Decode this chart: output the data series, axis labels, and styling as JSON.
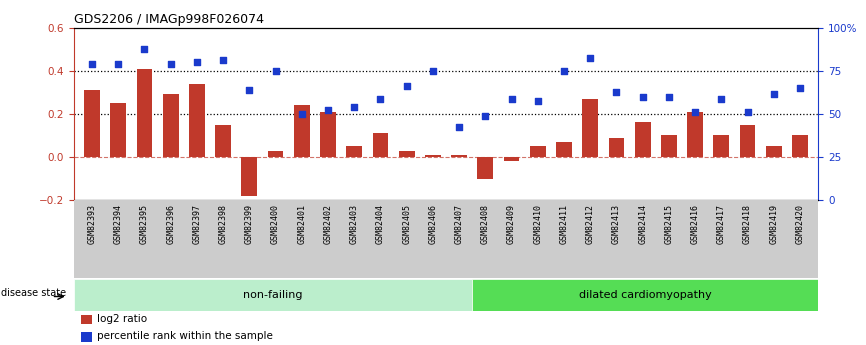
{
  "title": "GDS2206 / IMAGp998F026074",
  "samples": [
    "GSM82393",
    "GSM82394",
    "GSM82395",
    "GSM82396",
    "GSM82397",
    "GSM82398",
    "GSM82399",
    "GSM82400",
    "GSM82401",
    "GSM82402",
    "GSM82403",
    "GSM82404",
    "GSM82405",
    "GSM82406",
    "GSM82407",
    "GSM82408",
    "GSM82409",
    "GSM82410",
    "GSM82411",
    "GSM82412",
    "GSM82413",
    "GSM82414",
    "GSM82415",
    "GSM82416",
    "GSM82417",
    "GSM82418",
    "GSM82419",
    "GSM82420"
  ],
  "log2_ratio": [
    0.31,
    0.25,
    0.41,
    0.29,
    0.34,
    0.15,
    -0.18,
    0.03,
    0.24,
    0.21,
    0.05,
    0.11,
    0.03,
    0.01,
    0.01,
    -0.1,
    -0.02,
    0.05,
    0.07,
    0.27,
    0.09,
    0.16,
    0.1,
    0.21,
    0.1,
    0.15,
    0.05,
    0.1
  ],
  "percentile": [
    0.43,
    0.43,
    0.5,
    0.43,
    0.44,
    0.45,
    0.31,
    0.4,
    0.2,
    0.22,
    0.23,
    0.27,
    0.33,
    0.4,
    0.14,
    0.19,
    0.27,
    0.26,
    0.4,
    0.46,
    0.3,
    0.28,
    0.28,
    0.21,
    0.27,
    0.21,
    0.29,
    0.32
  ],
  "non_failing_count": 15,
  "ylim_left": [
    -0.2,
    0.6
  ],
  "bar_color": "#C0392B",
  "dot_color": "#1A3ACC",
  "background_color": "#FFFFFF",
  "nonfailing_color": "#BBEECC",
  "dilated_color": "#55DD55",
  "tick_bg_color": "#CCCCCC"
}
